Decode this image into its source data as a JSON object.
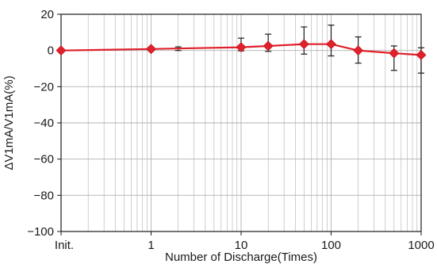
{
  "chart_data": {
    "type": "line",
    "title": "",
    "xlabel": "Number of Discharge(Times)",
    "ylabel": "ΔV1mA/V1mA(%)",
    "xscale": "log",
    "xlim": [
      0.1,
      1000
    ],
    "ylim": [
      -100,
      20
    ],
    "grid": true,
    "colors": {
      "series": "#e0202a",
      "marker": "#e0202a",
      "error_bar": "#1a1a1a",
      "grid": "#b0b0b0",
      "axes": "#1a1a1a"
    },
    "x_tick_labels": [
      {
        "x": 0.1,
        "label": "Init."
      },
      {
        "x": 1,
        "label": "1"
      },
      {
        "x": 10,
        "label": "10"
      },
      {
        "x": 100,
        "label": "100"
      },
      {
        "x": 1000,
        "label": "1000"
      }
    ],
    "y_tick_labels": [
      {
        "y": 20,
        "label": "20"
      },
      {
        "y": 0,
        "label": "0"
      },
      {
        "y": -20,
        "label": "−20"
      },
      {
        "y": -40,
        "label": "−40"
      },
      {
        "y": -60,
        "label": "−60"
      },
      {
        "y": -80,
        "label": "−80"
      },
      {
        "y": -100,
        "label": "−100"
      }
    ],
    "series": [
      {
        "x": [
          0.1,
          1,
          10,
          20,
          50,
          100,
          200,
          500,
          1000
        ],
        "y": [
          0,
          0.8,
          1.8,
          2.5,
          3.5,
          3.5,
          0,
          -1.5,
          -2.5
        ],
        "error_upper": [
          0,
          1,
          5,
          6.5,
          9.5,
          10.5,
          7.5,
          4,
          4
        ],
        "error_lower": [
          0,
          1,
          2,
          3,
          5.5,
          6.5,
          7,
          9.5,
          10
        ]
      }
    ],
    "extra_error_bars": [
      {
        "x": 2,
        "y": 1,
        "error": 1
      }
    ]
  }
}
